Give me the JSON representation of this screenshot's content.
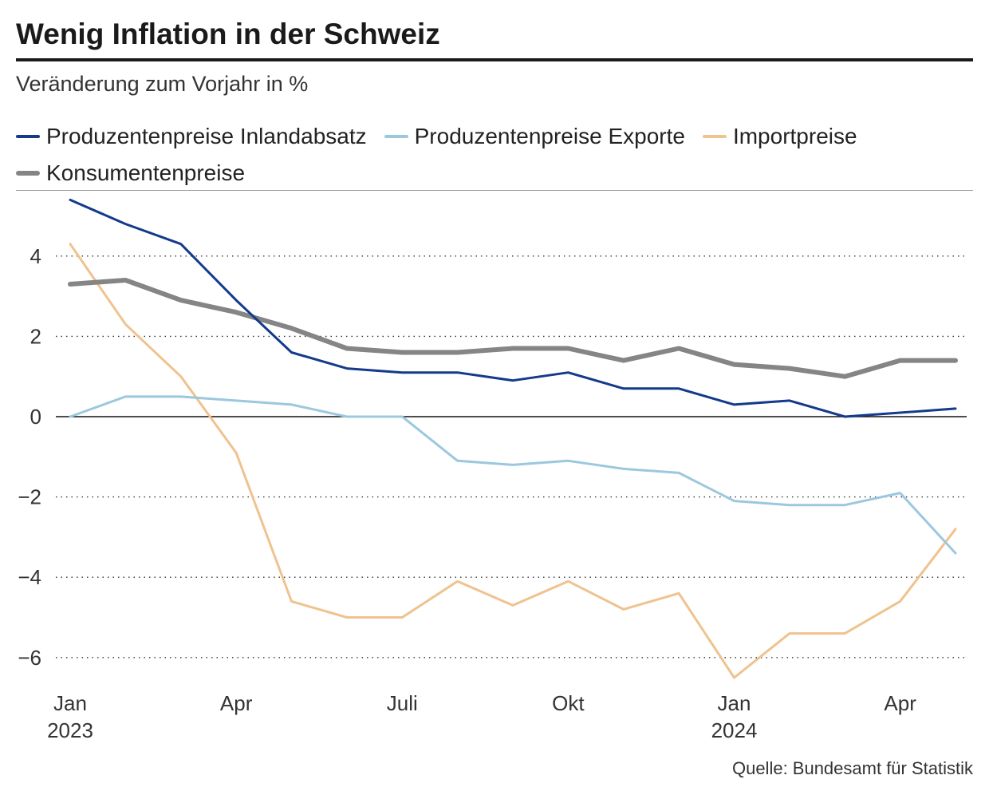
{
  "title": "Wenig Inflation in der Schweiz",
  "subtitle": "Veränderung zum Vorjahr in %",
  "source": "Quelle: Bundesamt für Statistik",
  "legend": [
    {
      "label": "Produzentenpreise Inlandabsatz",
      "color": "#143a8c"
    },
    {
      "label": "Produzentenpreise Exporte",
      "color": "#9cc8de"
    },
    {
      "label": "Importpreise",
      "color": "#f0c28e"
    },
    {
      "label": "Konsumentenpreise",
      "color": "#858585"
    }
  ],
  "chart_data": {
    "type": "line",
    "title": "Wenig Inflation in der Schweiz",
    "subtitle": "Veränderung zum Vorjahr in %",
    "xlabel": "",
    "ylabel": "Veränderung zum Vorjahr in %",
    "ylim": [
      -6.6,
      5.6
    ],
    "grid": true,
    "x": [
      "2023-01",
      "2023-02",
      "2023-03",
      "2023-04",
      "2023-05",
      "2023-06",
      "2023-07",
      "2023-08",
      "2023-09",
      "2023-10",
      "2023-11",
      "2023-12",
      "2024-01",
      "2024-02",
      "2024-03",
      "2024-04",
      "2024-05"
    ],
    "x_ticks": [
      {
        "index": 0,
        "label": "Jan",
        "sublabel": "2023"
      },
      {
        "index": 3,
        "label": "Apr",
        "sublabel": ""
      },
      {
        "index": 6,
        "label": "Juli",
        "sublabel": ""
      },
      {
        "index": 9,
        "label": "Okt",
        "sublabel": ""
      },
      {
        "index": 12,
        "label": "Jan",
        "sublabel": "2024"
      },
      {
        "index": 15,
        "label": "Apr",
        "sublabel": ""
      }
    ],
    "y_ticks": [
      {
        "value": 4,
        "label": "4"
      },
      {
        "value": 2,
        "label": "2"
      },
      {
        "value": 0,
        "label": "0"
      },
      {
        "value": -2,
        "label": "−2"
      },
      {
        "value": -4,
        "label": "−4"
      },
      {
        "value": -6,
        "label": "−6"
      }
    ],
    "series": [
      {
        "name": "Importpreise",
        "color": "#f0c28e",
        "width": 3,
        "values": [
          4.3,
          2.3,
          1.0,
          -0.9,
          -4.6,
          -5.0,
          -5.0,
          -4.1,
          -4.7,
          -4.1,
          -4.8,
          -4.4,
          -6.5,
          -5.4,
          -5.4,
          -4.6,
          -2.8
        ]
      },
      {
        "name": "Produzentenpreise Exporte",
        "color": "#9cc8de",
        "width": 3,
        "values": [
          0.0,
          0.5,
          0.5,
          0.4,
          0.3,
          0.0,
          0.0,
          -1.1,
          -1.2,
          -1.1,
          -1.3,
          -1.4,
          -2.1,
          -2.2,
          -2.2,
          -1.9,
          -3.4
        ]
      },
      {
        "name": "Konsumentenpreise",
        "color": "#858585",
        "width": 6,
        "values": [
          3.3,
          3.4,
          2.9,
          2.6,
          2.2,
          1.7,
          1.6,
          1.6,
          1.7,
          1.7,
          1.4,
          1.7,
          1.3,
          1.2,
          1.0,
          1.4,
          1.4
        ]
      },
      {
        "name": "Produzentenpreise Inlandabsatz",
        "color": "#143a8c",
        "width": 3,
        "values": [
          5.4,
          4.8,
          4.3,
          2.9,
          1.6,
          1.2,
          1.1,
          1.1,
          0.9,
          1.1,
          0.7,
          0.7,
          0.3,
          0.4,
          0.0,
          0.1,
          0.2
        ]
      }
    ]
  }
}
